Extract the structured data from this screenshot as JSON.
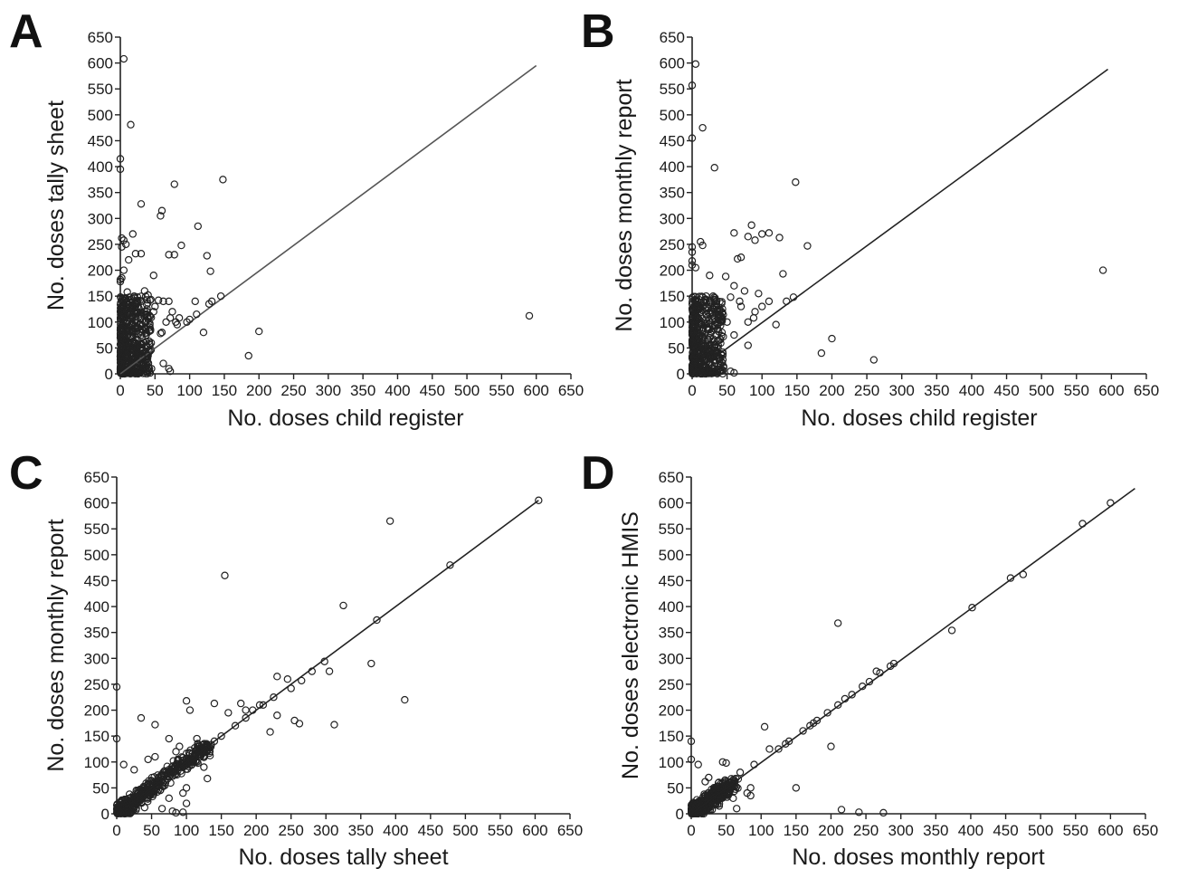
{
  "chart_data": [
    {
      "type": "scatter",
      "panel": "A",
      "xlabel": "No. doses child register",
      "ylabel": "No. doses tally sheet",
      "xlim": [
        0,
        650
      ],
      "ylim": [
        0,
        650
      ],
      "xticks": [
        "0",
        "50",
        "100",
        "150",
        "200",
        "250",
        "300",
        "350",
        "400",
        "450",
        "500",
        "550",
        "600",
        "650"
      ],
      "yticks": [
        "0",
        "50",
        "100",
        "150",
        "200",
        "250",
        "300",
        "350",
        "400",
        "450",
        "500",
        "550",
        "600",
        "650"
      ],
      "line": {
        "x": [
          0,
          600
        ],
        "y": [
          0,
          595
        ]
      },
      "points": [
        [
          5,
          608
        ],
        [
          15,
          481
        ],
        [
          0,
          415
        ],
        [
          0,
          395
        ],
        [
          30,
          328
        ],
        [
          78,
          366
        ],
        [
          148,
          375
        ],
        [
          60,
          315
        ],
        [
          58,
          305
        ],
        [
          112,
          285
        ],
        [
          5,
          258
        ],
        [
          2,
          262
        ],
        [
          2,
          245
        ],
        [
          8,
          250
        ],
        [
          22,
          232
        ],
        [
          30,
          232
        ],
        [
          70,
          230
        ],
        [
          78,
          230
        ],
        [
          125,
          228
        ],
        [
          88,
          248
        ],
        [
          130,
          198
        ],
        [
          0,
          182
        ],
        [
          0,
          178
        ],
        [
          2,
          185
        ],
        [
          48,
          190
        ],
        [
          18,
          270
        ],
        [
          12,
          220
        ],
        [
          5,
          200
        ],
        [
          590,
          112
        ],
        [
          200,
          82
        ],
        [
          185,
          35
        ],
        [
          120,
          80
        ],
        [
          128,
          135
        ],
        [
          132,
          140
        ],
        [
          100,
          105
        ],
        [
          96,
          100
        ],
        [
          110,
          115
        ],
        [
          145,
          150
        ],
        [
          108,
          140
        ],
        [
          70,
          140
        ],
        [
          62,
          140
        ],
        [
          55,
          142
        ],
        [
          80,
          100
        ],
        [
          85,
          108
        ],
        [
          60,
          80
        ],
        [
          58,
          78
        ],
        [
          40,
          35
        ],
        [
          45,
          10
        ],
        [
          42,
          5
        ],
        [
          70,
          10
        ],
        [
          72,
          5
        ],
        [
          62,
          20
        ],
        [
          75,
          120
        ],
        [
          35,
          160
        ],
        [
          10,
          158
        ],
        [
          20,
          150
        ],
        [
          8,
          145
        ],
        [
          40,
          152
        ],
        [
          50,
          130
        ],
        [
          25,
          130
        ],
        [
          30,
          140
        ],
        [
          66,
          100
        ],
        [
          72,
          108
        ],
        [
          82,
          95
        ],
        [
          48,
          120
        ],
        [
          35,
          115
        ]
      ],
      "cluster": {
        "x_max": 45,
        "y_max": 150
      }
    },
    {
      "type": "scatter",
      "panel": "B",
      "xlabel": "No. doses child register",
      "ylabel": "No. doses monthly report",
      "xlim": [
        0,
        650
      ],
      "ylim": [
        0,
        650
      ],
      "xticks": [
        "0",
        "50",
        "100",
        "150",
        "200",
        "250",
        "300",
        "350",
        "400",
        "450",
        "500",
        "550",
        "600",
        "650"
      ],
      "yticks": [
        "0",
        "50",
        "100",
        "150",
        "200",
        "250",
        "300",
        "350",
        "400",
        "450",
        "500",
        "550",
        "600",
        "650"
      ],
      "line": {
        "x": [
          0,
          595
        ],
        "y": [
          0,
          588
        ]
      },
      "points": [
        [
          5,
          598
        ],
        [
          0,
          557
        ],
        [
          0,
          455
        ],
        [
          15,
          475
        ],
        [
          32,
          398
        ],
        [
          148,
          370
        ],
        [
          85,
          287
        ],
        [
          80,
          265
        ],
        [
          100,
          270
        ],
        [
          110,
          272
        ],
        [
          125,
          263
        ],
        [
          165,
          247
        ],
        [
          12,
          255
        ],
        [
          15,
          248
        ],
        [
          0,
          245
        ],
        [
          0,
          235
        ],
        [
          60,
          272
        ],
        [
          70,
          225
        ],
        [
          65,
          222
        ],
        [
          90,
          258
        ],
        [
          130,
          193
        ],
        [
          0,
          218
        ],
        [
          0,
          210
        ],
        [
          5,
          205
        ],
        [
          588,
          200
        ],
        [
          200,
          68
        ],
        [
          185,
          40
        ],
        [
          260,
          27
        ],
        [
          120,
          95
        ],
        [
          135,
          140
        ],
        [
          100,
          130
        ],
        [
          90,
          120
        ],
        [
          110,
          140
        ],
        [
          145,
          148
        ],
        [
          95,
          155
        ],
        [
          68,
          140
        ],
        [
          55,
          148
        ],
        [
          80,
          100
        ],
        [
          88,
          108
        ],
        [
          60,
          75
        ],
        [
          40,
          20
        ],
        [
          45,
          12
        ],
        [
          40,
          5
        ],
        [
          55,
          5
        ],
        [
          60,
          2
        ],
        [
          80,
          55
        ],
        [
          50,
          100
        ],
        [
          30,
          150
        ],
        [
          20,
          150
        ],
        [
          35,
          140
        ],
        [
          48,
          188
        ],
        [
          25,
          190
        ],
        [
          60,
          170
        ],
        [
          70,
          130
        ],
        [
          75,
          160
        ],
        [
          35,
          130
        ]
      ],
      "cluster": {
        "x_max": 45,
        "y_max": 150
      }
    },
    {
      "type": "scatter",
      "panel": "C",
      "xlabel": "No. doses tally sheet",
      "ylabel": "No. doses monthly report",
      "xlim": [
        0,
        650
      ],
      "ylim": [
        0,
        650
      ],
      "xticks": [
        "0",
        "50",
        "100",
        "150",
        "200",
        "250",
        "300",
        "350",
        "400",
        "450",
        "500",
        "550",
        "600",
        "650"
      ],
      "yticks": [
        "0",
        "50",
        "100",
        "150",
        "200",
        "250",
        "300",
        "350",
        "400",
        "450",
        "500",
        "550",
        "600",
        "650"
      ],
      "line": {
        "x": [
          0,
          605
        ],
        "y": [
          0,
          605
        ]
      },
      "points": [
        [
          605,
          605
        ],
        [
          392,
          565
        ],
        [
          478,
          480
        ],
        [
          155,
          460
        ],
        [
          325,
          402
        ],
        [
          373,
          374
        ],
        [
          298,
          294
        ],
        [
          365,
          290
        ],
        [
          305,
          275
        ],
        [
          280,
          275
        ],
        [
          230,
          265
        ],
        [
          245,
          260
        ],
        [
          413,
          220
        ],
        [
          255,
          180
        ],
        [
          262,
          174
        ],
        [
          312,
          172
        ],
        [
          220,
          158
        ],
        [
          230,
          190
        ],
        [
          205,
          210
        ],
        [
          178,
          213
        ],
        [
          100,
          218
        ],
        [
          140,
          213
        ],
        [
          160,
          195
        ],
        [
          185,
          200
        ],
        [
          195,
          200
        ],
        [
          250,
          242
        ],
        [
          265,
          257
        ],
        [
          225,
          225
        ],
        [
          210,
          210
        ],
        [
          35,
          185
        ],
        [
          55,
          172
        ],
        [
          0,
          245
        ],
        [
          0,
          145
        ],
        [
          105,
          200
        ],
        [
          130,
          68
        ],
        [
          115,
          145
        ],
        [
          90,
          130
        ],
        [
          85,
          120
        ],
        [
          75,
          145
        ],
        [
          55,
          110
        ],
        [
          45,
          105
        ],
        [
          70,
          80
        ],
        [
          65,
          65
        ],
        [
          70,
          60
        ],
        [
          75,
          30
        ],
        [
          95,
          40
        ],
        [
          100,
          50
        ],
        [
          120,
          120
        ],
        [
          130,
          130
        ],
        [
          150,
          150
        ],
        [
          140,
          140
        ],
        [
          170,
          170
        ],
        [
          185,
          185
        ],
        [
          115,
          100
        ],
        [
          125,
          90
        ],
        [
          80,
          5
        ],
        [
          85,
          2
        ],
        [
          100,
          20
        ],
        [
          95,
          3
        ],
        [
          65,
          10
        ],
        [
          40,
          12
        ],
        [
          5,
          2
        ],
        [
          10,
          95
        ],
        [
          25,
          85
        ]
      ],
      "cluster": {
        "x_max": 130,
        "y_max": 130
      }
    },
    {
      "type": "scatter",
      "panel": "D",
      "xlabel": "No. doses monthly report",
      "ylabel": "No. doses electronic HMIS",
      "xlim": [
        0,
        650
      ],
      "ylim": [
        0,
        650
      ],
      "xticks": [
        "0",
        "50",
        "100",
        "150",
        "200",
        "250",
        "300",
        "350",
        "400",
        "450",
        "500",
        "550",
        "600",
        "650"
      ],
      "yticks": [
        "0",
        "50",
        "100",
        "150",
        "200",
        "250",
        "300",
        "350",
        "400",
        "450",
        "500",
        "550",
        "600",
        "650"
      ],
      "line": {
        "x": [
          0,
          635
        ],
        "y": [
          0,
          628
        ]
      },
      "points": [
        [
          600,
          600
        ],
        [
          560,
          560
        ],
        [
          475,
          462
        ],
        [
          457,
          455
        ],
        [
          402,
          398
        ],
        [
          373,
          354
        ],
        [
          290,
          290
        ],
        [
          285,
          285
        ],
        [
          270,
          272
        ],
        [
          265,
          275
        ],
        [
          255,
          255
        ],
        [
          245,
          246
        ],
        [
          230,
          230
        ],
        [
          220,
          222
        ],
        [
          210,
          368
        ],
        [
          200,
          130
        ],
        [
          215,
          8
        ],
        [
          240,
          3
        ],
        [
          275,
          2
        ],
        [
          210,
          210
        ],
        [
          195,
          195
        ],
        [
          180,
          180
        ],
        [
          175,
          175
        ],
        [
          170,
          170
        ],
        [
          160,
          160
        ],
        [
          150,
          50
        ],
        [
          140,
          140
        ],
        [
          135,
          135
        ],
        [
          125,
          125
        ],
        [
          105,
          168
        ],
        [
          112,
          125
        ],
        [
          90,
          95
        ],
        [
          85,
          50
        ],
        [
          80,
          40
        ],
        [
          85,
          35
        ],
        [
          70,
          80
        ],
        [
          55,
          60
        ],
        [
          50,
          98
        ],
        [
          45,
          100
        ],
        [
          40,
          15
        ],
        [
          25,
          70
        ],
        [
          20,
          62
        ],
        [
          10,
          95
        ],
        [
          0,
          140
        ],
        [
          0,
          105
        ],
        [
          60,
          30
        ],
        [
          65,
          10
        ],
        [
          30,
          8
        ]
      ],
      "cluster": {
        "x_max": 60,
        "y_max": 60
      }
    }
  ]
}
